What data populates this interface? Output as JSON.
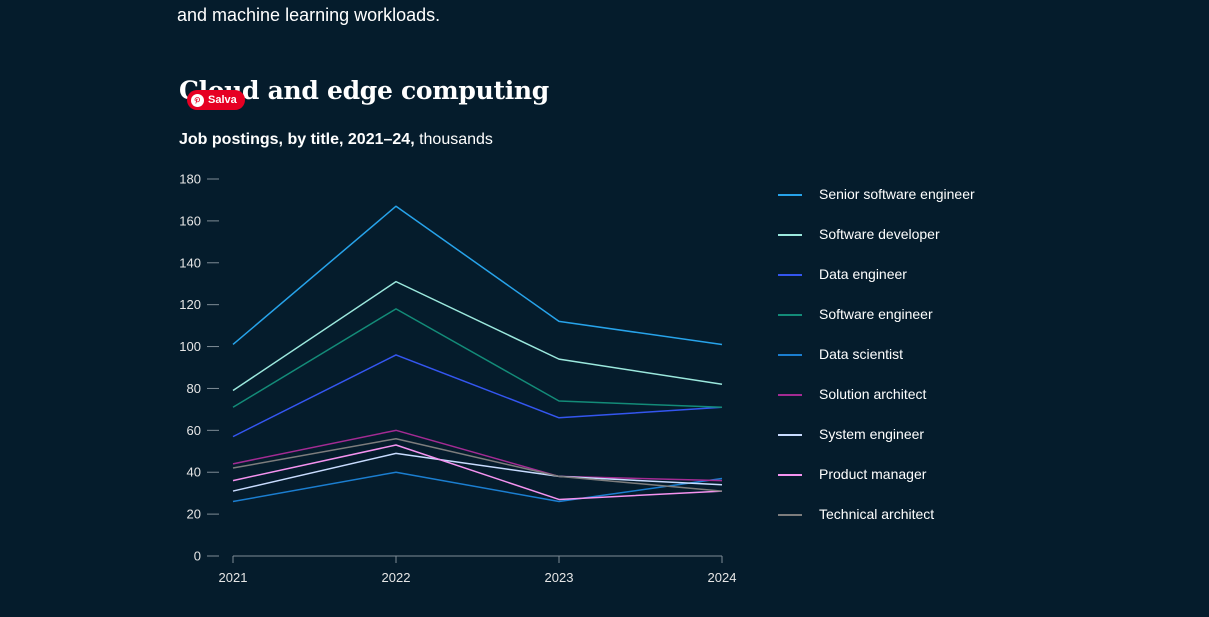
{
  "intro": {
    "text": "and machine learning workloads."
  },
  "section": {
    "title": "Cloud and edge computing"
  },
  "pin_button": {
    "label": "Salva",
    "color": "#e60023"
  },
  "chart_data": {
    "type": "line",
    "subtitle_bold": "Job postings, by title, 2021–24,",
    "subtitle_unit": " thousands",
    "categories": [
      "2021",
      "2022",
      "2023",
      "2024"
    ],
    "y_ticks": [
      "0",
      "20",
      "40",
      "60",
      "80",
      "100",
      "120",
      "140",
      "160",
      "180"
    ],
    "ylim": [
      0,
      180
    ],
    "grid": false,
    "legend_position": "right",
    "series": [
      {
        "name": "Senior software engineer",
        "color": "#27a3ea",
        "values": [
          101,
          167,
          112,
          101
        ]
      },
      {
        "name": "Software developer",
        "color": "#9be8dd",
        "values": [
          79,
          131,
          94,
          82
        ]
      },
      {
        "name": "Data engineer",
        "color": "#3456f0",
        "values": [
          57,
          96,
          66,
          71
        ]
      },
      {
        "name": "Software engineer",
        "color": "#138b78",
        "values": [
          71,
          118,
          74,
          71
        ]
      },
      {
        "name": "Data scientist",
        "color": "#1b7ed0",
        "values": [
          26,
          40,
          26,
          37
        ]
      },
      {
        "name": "Solution architect",
        "color": "#a32b93",
        "values": [
          44,
          60,
          38,
          36
        ]
      },
      {
        "name": "System engineer",
        "color": "#c8dcff",
        "values": [
          31,
          49,
          38,
          34
        ]
      },
      {
        "name": "Product manager",
        "color": "#f593f0",
        "values": [
          36,
          53,
          27,
          31
        ]
      },
      {
        "name": "Technical architect",
        "color": "#7d7d7d",
        "values": [
          42,
          56,
          38,
          31
        ]
      }
    ]
  }
}
